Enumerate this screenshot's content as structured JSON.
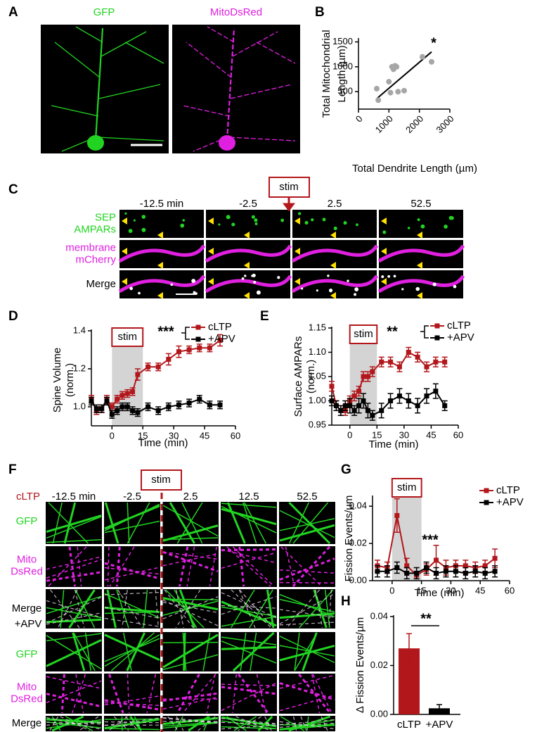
{
  "panel_labels": [
    "A",
    "B",
    "C",
    "D",
    "E",
    "F",
    "G",
    "H"
  ],
  "panel_a": {
    "labels": [
      "GFP",
      "MitoDsRed"
    ]
  },
  "panel_c": {
    "stim": "stim",
    "times": [
      "-12.5 min",
      "-2.5",
      "2.5",
      "52.5"
    ],
    "rows": [
      [
        "SEP",
        "AMPARs"
      ],
      [
        "membrane",
        "mCherry"
      ],
      [
        "Merge"
      ]
    ]
  },
  "panel_f": {
    "conditions": [
      "cLTP",
      "+APV"
    ],
    "stim": "stim",
    "times": [
      "-12.5 min",
      "-2.5",
      "2.5",
      "12.5",
      "52.5"
    ],
    "rows": [
      [
        "GFP"
      ],
      [
        "Mito",
        "DsRed"
      ],
      [
        "Merge"
      ]
    ]
  },
  "chart_data": [
    {
      "type": "scatter",
      "annotation": "*",
      "x_label": "Total Dendrite Length (µm)",
      "y_label": [
        "Total Mitochondrial",
        "Length (µm)"
      ],
      "x": [
        600,
        650,
        1000,
        1050,
        1100,
        1150,
        1200,
        1250,
        1300,
        1500,
        2100,
        2400
      ],
      "y": [
        560,
        330,
        700,
        480,
        1000,
        950,
        1020,
        1000,
        500,
        520,
        1200,
        1100
      ],
      "color": "#a6a6a6",
      "fit_line": {
        "x": [
          600,
          2400
        ],
        "y": [
          360,
          1300
        ]
      },
      "xlim": [
        0,
        3000
      ],
      "xticks": [
        0,
        1000,
        2000,
        3000
      ],
      "ylim": [
        150,
        1550
      ],
      "yticks": [
        500,
        1000,
        1500
      ]
    },
    {
      "type": "line",
      "annotation": "***",
      "stim_label": "stim",
      "stim_window": [
        0,
        15
      ],
      "x_label": "Time (min)",
      "y_label": [
        "Spine Volume",
        "(norm.)"
      ],
      "x": [
        -10,
        -7.5,
        -5,
        -2.5,
        0,
        2.5,
        5,
        7.5,
        10,
        12.5,
        17.5,
        22.5,
        27.5,
        32.5,
        37.5,
        42.5,
        47.5,
        52.5
      ],
      "series": [
        {
          "name": "cLTP",
          "color": "#b2171b",
          "values": [
            1.04,
            0.98,
            0.99,
            1.04,
            1.0,
            1.04,
            1.06,
            1.07,
            1.08,
            1.17,
            1.21,
            1.21,
            1.25,
            1.29,
            1.3,
            1.31,
            1.31,
            1.35
          ],
          "errors": [
            0.02,
            0.02,
            0.02,
            0.02,
            0.02,
            0.02,
            0.02,
            0.02,
            0.02,
            0.03,
            0.02,
            0.02,
            0.03,
            0.03,
            0.02,
            0.02,
            0.02,
            0.03
          ]
        },
        {
          "name": "+APV",
          "color": "#000000",
          "values": [
            1.03,
            0.99,
            0.99,
            1.03,
            0.96,
            0.98,
            1.0,
            1.0,
            0.98,
            0.97,
            1.0,
            0.98,
            1.0,
            1.01,
            1.02,
            1.04,
            1.01,
            1.01
          ],
          "errors": [
            0.02,
            0.02,
            0.02,
            0.02,
            0.02,
            0.02,
            0.02,
            0.02,
            0.02,
            0.02,
            0.02,
            0.02,
            0.02,
            0.02,
            0.02,
            0.02,
            0.02,
            0.02
          ]
        }
      ],
      "xlim": [
        -10,
        60
      ],
      "xticks": [
        0,
        15,
        30,
        45,
        60
      ],
      "ylim": [
        0.9,
        1.4
      ],
      "yticks": [
        {
          "value": 1,
          "label": "1.0"
        },
        1.2,
        1.4
      ]
    },
    {
      "type": "line",
      "annotation": "**",
      "stim_label": "stim",
      "stim_window": [
        0,
        15
      ],
      "x_label": "Time (min)",
      "y_label": [
        "Surface AMPARs",
        "(norm.)"
      ],
      "x": [
        -10,
        -7.5,
        -5,
        -2.5,
        0,
        2.5,
        5,
        7.5,
        10,
        12.5,
        17.5,
        22.5,
        27.5,
        32.5,
        37.5,
        42.5,
        47.5,
        52.5
      ],
      "series": [
        {
          "name": "cLTP",
          "color": "#b2171b",
          "values": [
            1.03,
            0.99,
            0.98,
            0.98,
            1.0,
            1.01,
            1.02,
            1.05,
            1.05,
            1.06,
            1.08,
            1.08,
            1.07,
            1.1,
            1.09,
            1.07,
            1.08,
            1.08
          ],
          "errors": [
            0.01,
            0.01,
            0.01,
            0.01,
            0.01,
            0.01,
            0.01,
            0.01,
            0.01,
            0.01,
            0.01,
            0.01,
            0.01,
            0.01,
            0.01,
            0.01,
            0.01,
            0.01
          ]
        },
        {
          "name": "+APV",
          "color": "#000000",
          "values": [
            1.0,
            0.99,
            0.98,
            0.99,
            0.99,
            0.98,
            0.99,
            1.0,
            0.98,
            0.97,
            0.98,
            1.0,
            1.01,
            1.0,
            0.99,
            1.01,
            1.02,
            0.99
          ],
          "errors": [
            0.01,
            0.01,
            0.01,
            0.01,
            0.015,
            0.01,
            0.015,
            0.015,
            0.015,
            0.01,
            0.015,
            0.015,
            0.015,
            0.015,
            0.015,
            0.015,
            0.015,
            0.01
          ]
        }
      ],
      "xlim": [
        -10,
        60
      ],
      "xticks": [
        0,
        15,
        30,
        45,
        60
      ],
      "ylim": [
        0.95,
        1.15
      ],
      "yticks": [
        0.95,
        {
          "value": 1,
          "label": "1.00"
        },
        1.05,
        {
          "value": 1.1,
          "label": "1.10"
        },
        1.15
      ]
    },
    {
      "type": "line",
      "annotation": "***",
      "stim_label": "stim",
      "stim_window": [
        0,
        15
      ],
      "x_label": "Time (min)",
      "y_label": [
        "Fission Events/µm"
      ],
      "x": [
        -7.5,
        -2.5,
        2.5,
        7.5,
        12.5,
        17.5,
        22.5,
        27.5,
        32.5,
        37.5,
        42.5,
        47.5,
        52.5
      ],
      "series": [
        {
          "name": "cLTP",
          "color": "#b2171b",
          "values": [
            0.008,
            0.007,
            0.035,
            0.008,
            0.003,
            0.006,
            0.011,
            0.007,
            0.008,
            0.008,
            0.007,
            0.008,
            0.012
          ],
          "errors": [
            0.003,
            0.003,
            0.009,
            0.004,
            0.002,
            0.003,
            0.008,
            0.004,
            0.003,
            0.003,
            0.003,
            0.003,
            0.005
          ]
        },
        {
          "name": "+APV",
          "color": "#000000",
          "values": [
            0.005,
            0.005,
            0.007,
            0.004,
            0.004,
            0.007,
            0.004,
            0.005,
            0.005,
            0.004,
            0.005,
            0.004,
            0.005
          ],
          "errors": [
            0.003,
            0.003,
            0.003,
            0.003,
            0.003,
            0.003,
            0.003,
            0.003,
            0.003,
            0.003,
            0.003,
            0.003,
            0.003
          ]
        }
      ],
      "xlim": [
        -10,
        60
      ],
      "xticks": [
        0,
        15,
        30,
        45,
        60
      ],
      "ylim": [
        0,
        0.045
      ],
      "yticks": [
        {
          "value": 0,
          "label": "0.00"
        },
        0.02,
        0.04
      ]
    },
    {
      "type": "bar",
      "annotation": "**",
      "y_label": [
        "Δ Fission Events/µm"
      ],
      "categories": [
        "cLTP",
        "+APV"
      ],
      "values": [
        0.027,
        0.0025
      ],
      "errors": [
        0.006,
        0.0015
      ],
      "colors": [
        "#b2171b",
        "#000000"
      ],
      "ylim": [
        0,
        0.04
      ],
      "yticks": [
        {
          "value": 0,
          "label": "0.00"
        },
        0.02,
        0.04
      ]
    }
  ]
}
